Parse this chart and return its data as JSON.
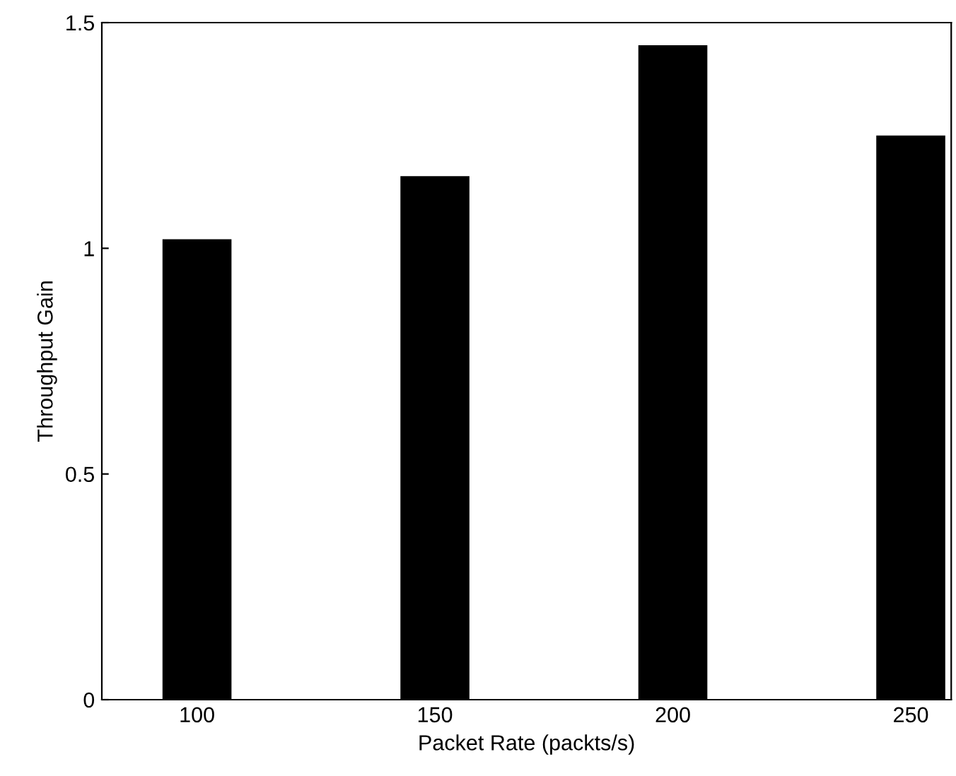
{
  "chart_data": {
    "type": "bar",
    "xlabel": "Packet Rate (packts/s)",
    "ylabel": "Throughput Gain",
    "categories": [
      "100",
      "150",
      "200",
      "250"
    ],
    "values": [
      1.02,
      1.16,
      1.45,
      1.25
    ],
    "color": "#000000",
    "ylim": [
      0,
      1.5
    ],
    "yticks": [
      0,
      0.5,
      1,
      1.5
    ],
    "grid": false,
    "legend": false
  }
}
